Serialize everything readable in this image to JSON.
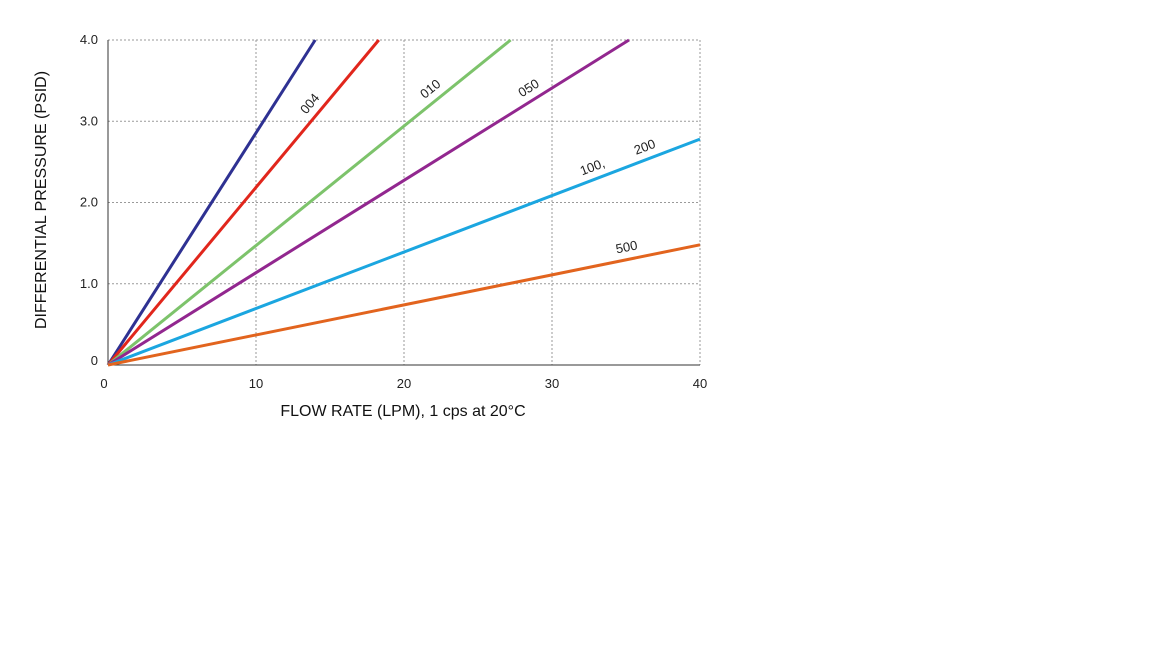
{
  "chart_data": {
    "type": "line",
    "title": "",
    "xlabel": "FLOW RATE (LPM), 1 cps at 20°C",
    "ylabel": "DIFFERENTIAL PRESSURE (PSID)",
    "xlim": [
      0,
      40
    ],
    "ylim": [
      0,
      4.0
    ],
    "xticks": [
      {
        "value": 0,
        "label": "0"
      },
      {
        "value": 10,
        "label": "10"
      },
      {
        "value": 20,
        "label": "20"
      },
      {
        "value": 30,
        "label": "30"
      },
      {
        "value": 40,
        "label": "40"
      }
    ],
    "yticks": [
      {
        "value": 0,
        "label": "0"
      },
      {
        "value": 1,
        "label": "1.0"
      },
      {
        "value": 2,
        "label": "2.0"
      },
      {
        "value": 3,
        "label": "3.0"
      },
      {
        "value": 4,
        "label": "4.0"
      }
    ],
    "grid": true,
    "series": [
      {
        "color": "#2e3192",
        "x": [
          0,
          14.0
        ],
        "y": [
          0,
          4.0
        ]
      },
      {
        "name": "004",
        "color": "#e1261c",
        "x": [
          0,
          18.3
        ],
        "y": [
          0,
          4.0
        ]
      },
      {
        "name": "010",
        "color": "#7dc36b",
        "x": [
          0,
          27.2
        ],
        "y": [
          0,
          4.0
        ]
      },
      {
        "name": "050",
        "color": "#92278f",
        "x": [
          0,
          35.2
        ],
        "y": [
          0,
          4.0
        ]
      },
      {
        "name": "100, 200",
        "color": "#1ba6e0",
        "x": [
          0,
          40
        ],
        "y": [
          0,
          2.78
        ]
      },
      {
        "name": "500",
        "color": "#e2641e",
        "x": [
          0,
          40
        ],
        "y": [
          0,
          1.48
        ]
      }
    ]
  }
}
